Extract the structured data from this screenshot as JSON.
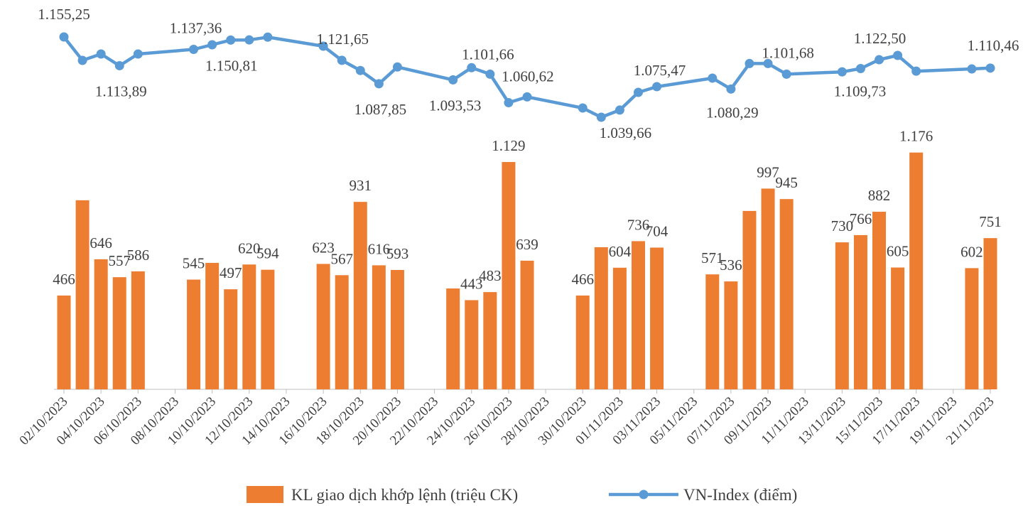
{
  "chart_data": {
    "type": "bar_line",
    "categories": [
      "02/10/2023",
      null,
      "04/10/2023",
      null,
      "06/10/2023",
      null,
      "08/10/2023",
      null,
      "10/10/2023",
      null,
      "12/10/2023",
      null,
      "14/10/2023",
      null,
      "16/10/2023",
      null,
      "18/10/2023",
      null,
      "20/10/2023",
      null,
      "22/10/2023",
      null,
      "24/10/2023",
      null,
      "26/10/2023",
      null,
      "28/10/2023",
      null,
      "30/10/2023",
      null,
      "01/11/2023",
      null,
      "03/11/2023",
      null,
      "05/11/2023",
      null,
      "07/11/2023",
      null,
      "09/11/2023",
      null,
      "11/11/2023",
      null,
      "13/11/2023",
      null,
      "15/11/2023",
      null,
      "17/11/2023",
      null,
      "19/11/2023",
      null,
      "21/11/2023"
    ],
    "ylim": [
      0,
      1863
    ],
    "y2lim": [
      648,
      1188
    ],
    "span_gaps": true,
    "legend": "bottom",
    "series": [
      {
        "name": "KL giao dịch khớp lệnh (triệu CK)",
        "type": "bar",
        "color": "#ed7d31",
        "values": [
          466,
          939,
          646,
          557,
          586,
          null,
          null,
          545,
          628,
          497,
          620,
          594,
          null,
          null,
          623,
          567,
          931,
          616,
          593,
          null,
          null,
          501,
          443,
          483,
          1129,
          639,
          null,
          null,
          466,
          706,
          604,
          736,
          704,
          null,
          null,
          571,
          536,
          886,
          997,
          945,
          null,
          null,
          730,
          766,
          882,
          605,
          1176,
          null,
          null,
          602,
          751
        ],
        "value_labels": [
          "466",
          null,
          "646",
          "557",
          "586",
          null,
          null,
          "545",
          null,
          "497",
          "620",
          "594",
          null,
          null,
          "623",
          "567",
          "931",
          "616",
          "593",
          null,
          null,
          null,
          "443",
          "483",
          "1.129",
          "639",
          null,
          null,
          "466",
          null,
          "604",
          "736",
          "704",
          null,
          null,
          "571",
          "536",
          null,
          "997",
          "945",
          null,
          null,
          "730",
          "766",
          "882",
          "605",
          "1.176",
          null,
          null,
          "602",
          "751"
        ]
      },
      {
        "name": "VN-Index (điểm)",
        "type": "line",
        "axis": "y2",
        "color": "#5b9bd5",
        "values": [
          1155.25,
          1121.5,
          1130.7,
          1113.89,
          1130.7,
          null,
          null,
          1137.36,
          1144,
          1150.81,
          1151,
          1155,
          null,
          null,
          1142,
          1121.65,
          1107,
          1087.85,
          1112,
          null,
          null,
          1093.53,
          1111,
          1101.66,
          1060.62,
          1069,
          null,
          null,
          1053,
          1039.66,
          1050,
          1075.47,
          1083.7,
          null,
          null,
          1096,
          1080.29,
          1117,
          1117,
          1101.68,
          null,
          null,
          1105,
          1109.73,
          1122.5,
          1128.7,
          1106,
          null,
          null,
          1109.2,
          1110.46
        ],
        "value_labels": [
          "1.155,25",
          null,
          null,
          "1.113,89",
          null,
          null,
          null,
          "1.137,36",
          null,
          "1.150,81",
          null,
          null,
          null,
          null,
          null,
          "1.121,65",
          null,
          "1.087,85",
          null,
          null,
          null,
          "1.093,53",
          null,
          "1.101,66",
          "1.060,62",
          null,
          null,
          null,
          null,
          "1.039,66",
          null,
          "1.075,47",
          null,
          null,
          null,
          null,
          "1.080,29",
          null,
          null,
          "1.101,68",
          null,
          null,
          null,
          "1.109,73",
          "1.122,50",
          null,
          null,
          null,
          null,
          null,
          "1.110,46"
        ]
      }
    ]
  }
}
